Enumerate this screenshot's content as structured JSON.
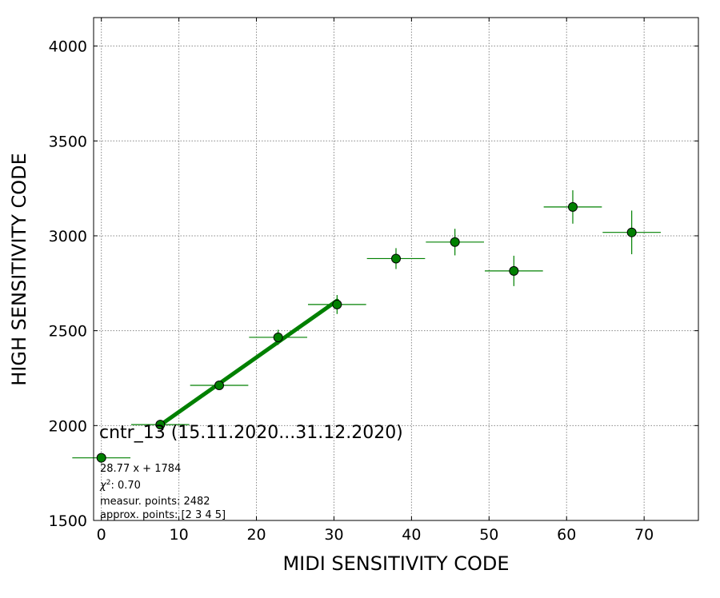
{
  "chart_data": {
    "type": "scatter",
    "xlabel": "MIDI SENSITIVITY CODE",
    "ylabel": "HIGH SENSITIVITY CODE",
    "xlim": [
      -1,
      77
    ],
    "ylim": [
      1500,
      4150
    ],
    "x_ticks": [
      0,
      10,
      20,
      30,
      40,
      50,
      60,
      70
    ],
    "y_ticks": [
      1500,
      2000,
      2500,
      3000,
      3500,
      4000
    ],
    "grid": true,
    "grid_style": "dotted",
    "marker_color": "#008000",
    "fit_color": "#008000",
    "points": [
      {
        "x": 0.0,
        "y": 1830,
        "xerr": 3.75,
        "yerr": 0
      },
      {
        "x": 7.6,
        "y": 2005,
        "xerr": 3.75,
        "yerr": 10
      },
      {
        "x": 15.2,
        "y": 2212,
        "xerr": 3.75,
        "yerr": 15
      },
      {
        "x": 22.8,
        "y": 2465,
        "xerr": 3.75,
        "yerr": 40
      },
      {
        "x": 30.4,
        "y": 2638,
        "xerr": 3.75,
        "yerr": 50
      },
      {
        "x": 38.0,
        "y": 2880,
        "xerr": 3.75,
        "yerr": 55
      },
      {
        "x": 45.6,
        "y": 2967,
        "xerr": 3.75,
        "yerr": 70
      },
      {
        "x": 53.2,
        "y": 2815,
        "xerr": 3.75,
        "yerr": 80
      },
      {
        "x": 60.8,
        "y": 3152,
        "xerr": 3.75,
        "yerr": 88
      },
      {
        "x": 68.4,
        "y": 3018,
        "xerr": 3.75,
        "yerr": 115
      }
    ],
    "fit": {
      "slope": 28.77,
      "intercept": 1784,
      "x_range": [
        7.6,
        30.4
      ]
    },
    "annotations": {
      "title": "cntr_13 (15.11.2020...31.12.2020)",
      "equation": "28.77 x + 1784",
      "chi2_label": "χ",
      "chi2_sup": "2",
      "chi2_value": ": 0.70",
      "measur_points": "measur. points: 2482",
      "approx_points": "approx. points: [2 3 4 5]"
    }
  }
}
